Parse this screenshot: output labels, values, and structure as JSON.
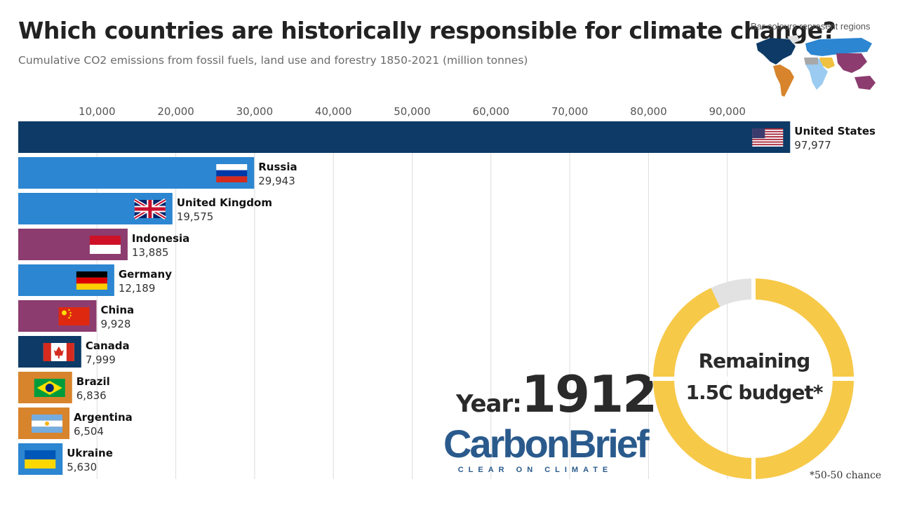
{
  "title": "Which countries are historically responsible for climate change?",
  "subtitle": "Cumulative CO2 emissions from fossil fuels, land use and forestry 1850-2021 (million tonnes)",
  "legend_note": "Bar colours represent regions",
  "colors": {
    "north_america": "#0d3a66",
    "europe": "#2c86d1",
    "asia": "#8c3c6f",
    "latin_america": "#d8842c",
    "budget_used": "#e2e2e2",
    "budget_remaining": "#f7c948"
  },
  "year": {
    "label": "Year:",
    "value": "1912"
  },
  "logo": {
    "name": "CarbonBrief",
    "tagline": "CLEAR ON CLIMATE"
  },
  "budget": {
    "line1": "Remaining",
    "line2": "1.5C budget*",
    "footnote": "*50-50 chance",
    "remaining_fraction": 0.93
  },
  "chart_data": {
    "type": "bar",
    "orientation": "horizontal",
    "title": "Which countries are historically responsible for climate change?",
    "subtitle": "Cumulative CO2 emissions from fossil fuels, land use and forestry 1850-2021 (million tonnes)",
    "xlim": [
      0,
      100000
    ],
    "x_ticks": [
      10000,
      20000,
      30000,
      40000,
      50000,
      60000,
      70000,
      80000,
      90000
    ],
    "x_tick_labels": [
      "10,000",
      "20,000",
      "30,000",
      "40,000",
      "50,000",
      "60,000",
      "70,000",
      "80,000",
      "90,000"
    ],
    "grid": true,
    "bars": [
      {
        "name": "United States",
        "value": 97977,
        "label": "97,977",
        "region": "north_america",
        "flag": "us-flag-icon"
      },
      {
        "name": "Russia",
        "value": 29943,
        "label": "29,943",
        "region": "europe",
        "flag": "russia-flag-icon"
      },
      {
        "name": "United Kingdom",
        "value": 19575,
        "label": "19,575",
        "region": "europe",
        "flag": "uk-flag-icon"
      },
      {
        "name": "Indonesia",
        "value": 13885,
        "label": "13,885",
        "region": "asia",
        "flag": "indonesia-flag-icon"
      },
      {
        "name": "Germany",
        "value": 12189,
        "label": "12,189",
        "region": "europe",
        "flag": "germany-flag-icon"
      },
      {
        "name": "China",
        "value": 9928,
        "label": "9,928",
        "region": "asia",
        "flag": "china-flag-icon"
      },
      {
        "name": "Canada",
        "value": 7999,
        "label": "7,999",
        "region": "north_america",
        "flag": "canada-flag-icon"
      },
      {
        "name": "Brazil",
        "value": 6836,
        "label": "6,836",
        "region": "latin_america",
        "flag": "brazil-flag-icon"
      },
      {
        "name": "Argentina",
        "value": 6504,
        "label": "6,504",
        "region": "latin_america",
        "flag": "argentina-flag-icon"
      },
      {
        "name": "Ukraine",
        "value": 5630,
        "label": "5,630",
        "region": "europe",
        "flag": "ukraine-flag-icon"
      }
    ]
  }
}
